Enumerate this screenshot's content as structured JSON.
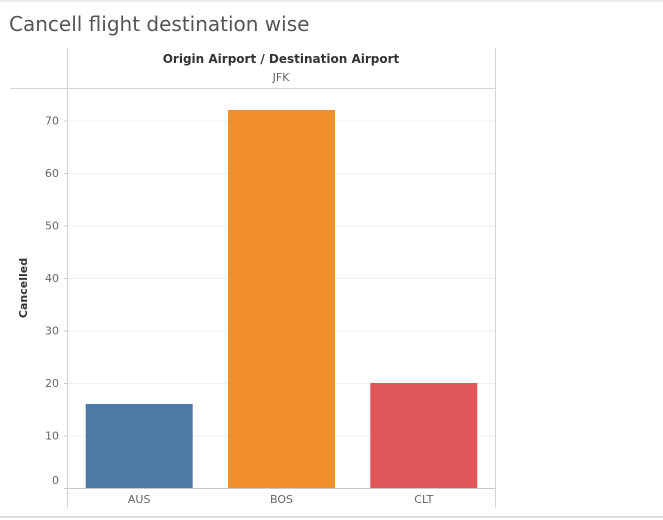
{
  "page": {
    "title": "Cancell flight destination wise"
  },
  "chart_data": {
    "type": "bar",
    "column_header": "Origin Airport / Destination Airport",
    "column_value": "JFK",
    "categories": [
      "AUS",
      "BOS",
      "CLT"
    ],
    "values": [
      16,
      72,
      20
    ],
    "colors": [
      "#4e79a7",
      "#f28e2b",
      "#e15759"
    ],
    "ylabel": "Cancelled",
    "xlabel": "",
    "yticks": [
      0,
      10,
      20,
      30,
      40,
      50,
      60,
      70
    ],
    "ylim": [
      0,
      75
    ],
    "grid": true,
    "legend": "none"
  }
}
